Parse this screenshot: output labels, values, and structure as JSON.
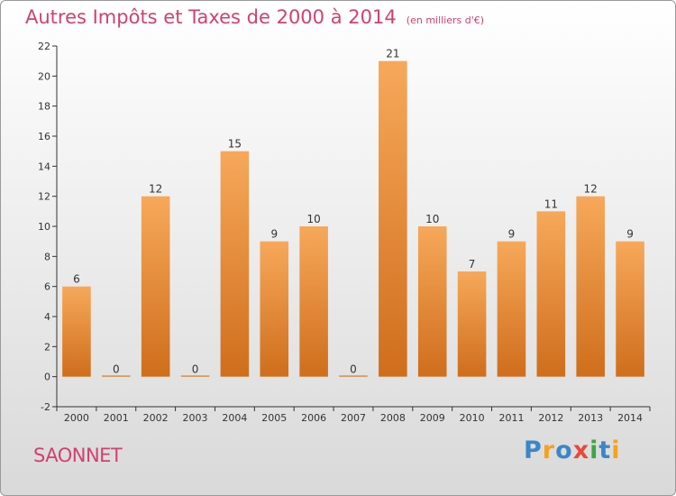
{
  "header": {
    "title": "Autres Impôts et Taxes de 2000 à 2014",
    "unit": "(en milliers d'€)"
  },
  "footer": {
    "commune": "SAONNET",
    "logo": [
      {
        "ch": "P",
        "color": "#3c86c8"
      },
      {
        "ch": "r",
        "color": "#f4a21c"
      },
      {
        "ch": "o",
        "color": "#3c86c8"
      },
      {
        "ch": "x",
        "color": "#e64a3b"
      },
      {
        "ch": "i",
        "color": "#3aa648"
      },
      {
        "ch": "t",
        "color": "#3c86c8"
      },
      {
        "ch": "i",
        "color": "#f4a21c"
      }
    ]
  },
  "chart_data": {
    "type": "bar",
    "title": "Autres Impôts et Taxes de 2000 à 2014",
    "unit": "(en milliers d'€)",
    "xlabel": "",
    "ylabel": "",
    "categories": [
      "2000",
      "2001",
      "2002",
      "2003",
      "2004",
      "2005",
      "2006",
      "2007",
      "2008",
      "2009",
      "2010",
      "2011",
      "2012",
      "2013",
      "2014"
    ],
    "values": [
      6,
      0,
      12,
      0,
      15,
      9,
      10,
      0,
      21,
      10,
      7,
      9,
      11,
      12,
      9
    ],
    "ylim": [
      -2,
      22
    ],
    "yticks": [
      -2,
      0,
      2,
      4,
      6,
      8,
      10,
      12,
      14,
      16,
      18,
      20,
      22
    ],
    "grid": false,
    "legend": "none",
    "bar_colors": {
      "top": "#f7a85a",
      "bottom": "#cf6e1c"
    },
    "axis_color": "#333333"
  }
}
